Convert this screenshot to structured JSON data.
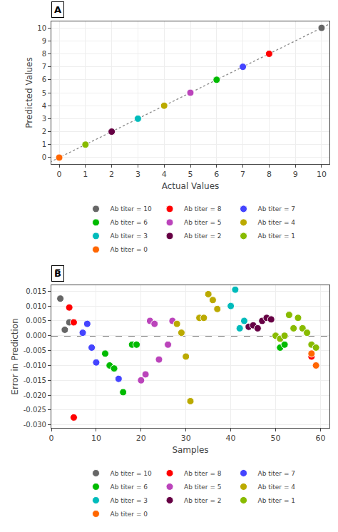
{
  "chart_data": [
    {
      "type": "scatter",
      "title": "A",
      "xlabel": "Actual Values",
      "ylabel": "Predicted Values",
      "xlim": [
        -0.3,
        10.3
      ],
      "ylim": [
        -0.5,
        10.5
      ],
      "xticks": [
        0,
        1,
        2,
        3,
        4,
        5,
        6,
        7,
        8,
        9,
        10
      ],
      "yticks": [
        0,
        1,
        2,
        3,
        4,
        5,
        6,
        7,
        8,
        9,
        10
      ],
      "grid": true,
      "legend": "bottom",
      "marker": "circle",
      "series": [
        {
          "type": "line",
          "line_style": "dotted",
          "color": "#888888",
          "x": [
            -0.5,
            10.5
          ],
          "y": [
            -0.5,
            10.5
          ]
        },
        {
          "name": "Ab titer = 10",
          "color": "#666666",
          "x": [
            10
          ],
          "y": [
            10
          ]
        },
        {
          "name": "Ab titer = 8",
          "color": "#FF0000",
          "x": [
            8
          ],
          "y": [
            8
          ]
        },
        {
          "name": "Ab titer = 7",
          "color": "#4444FF",
          "x": [
            7
          ],
          "y": [
            7
          ]
        },
        {
          "name": "Ab titer = 6",
          "color": "#00BB00",
          "x": [
            6
          ],
          "y": [
            6
          ]
        },
        {
          "name": "Ab titer = 5",
          "color": "#BB44BB",
          "x": [
            5
          ],
          "y": [
            5
          ]
        },
        {
          "name": "Ab titer = 4",
          "color": "#BBAA00",
          "x": [
            4
          ],
          "y": [
            4
          ]
        },
        {
          "name": "Ab titer = 3",
          "color": "#00BBBB",
          "x": [
            3
          ],
          "y": [
            3
          ]
        },
        {
          "name": "Ab titer = 2",
          "color": "#660044",
          "x": [
            2
          ],
          "y": [
            2
          ]
        },
        {
          "name": "Ab titer = 1",
          "color": "#88BB00",
          "x": [
            1
          ],
          "y": [
            1
          ]
        },
        {
          "name": "Ab titer = 0",
          "color": "#FF6600",
          "x": [
            0
          ],
          "y": [
            0
          ]
        }
      ]
    },
    {
      "type": "scatter",
      "title": "B̅",
      "xlabel": "Samples",
      "ylabel": "Error in Prediction",
      "xlim": [
        0,
        62
      ],
      "ylim": [
        -0.031,
        0.017
      ],
      "xticks": [
        0,
        10,
        20,
        30,
        40,
        50,
        60
      ],
      "yticks": [
        {
          "value": -0.03,
          "label": "-0.030"
        },
        {
          "value": -0.025,
          "label": "-0.025"
        },
        {
          "value": -0.02,
          "label": "-0.020"
        },
        {
          "value": -0.015,
          "label": "-0.015"
        },
        {
          "value": -0.01,
          "label": "-0.010"
        },
        {
          "value": -0.005,
          "label": "-0.005"
        },
        {
          "value": 0,
          "label": "0.000"
        },
        {
          "value": 0.005,
          "label": "0.005"
        },
        {
          "value": 0.01,
          "label": "0.010"
        },
        {
          "value": 0.015,
          "label": "0.015"
        }
      ],
      "grid": true,
      "legend": "bottom",
      "marker": "circle",
      "hline": {
        "y": 0,
        "color": "black",
        "line_style": "dashed"
      },
      "series": [
        {
          "name": "Ab titer = 10",
          "color": "#666666",
          "x": [
            2,
            3,
            4
          ],
          "y": [
            0.0125,
            0.002,
            0.0045
          ]
        },
        {
          "name": "Ab titer = 8",
          "color": "#FF0000",
          "x": [
            4,
            5,
            5,
            58,
            59
          ],
          "y": [
            0.0095,
            -0.0275,
            0.0045,
            -0.007,
            -0.01
          ]
        },
        {
          "name": "Ab titer = 7",
          "color": "#4444FF",
          "x": [
            7,
            8,
            9,
            10,
            15
          ],
          "y": [
            0.001,
            0.004,
            -0.004,
            -0.009,
            -0.0145
          ]
        },
        {
          "name": "Ab titer = 6",
          "color": "#00BB00",
          "x": [
            12,
            13,
            14,
            16,
            18,
            19,
            51,
            52
          ],
          "y": [
            -0.006,
            -0.01,
            -0.011,
            -0.019,
            -0.003,
            -0.003,
            -0.004,
            -0.003
          ]
        },
        {
          "name": "Ab titer = 5",
          "color": "#BB44BB",
          "x": [
            20,
            21,
            22,
            23,
            24,
            26,
            27
          ],
          "y": [
            -0.015,
            -0.013,
            0.005,
            0.004,
            -0.008,
            -0.003,
            0.005
          ]
        },
        {
          "name": "Ab titer = 4",
          "color": "#BBAA00",
          "x": [
            28,
            29,
            30,
            31,
            33,
            34,
            35,
            36,
            37
          ],
          "y": [
            0.004,
            0.001,
            -0.007,
            -0.022,
            0.006,
            0.006,
            0.014,
            0.012,
            0.009
          ]
        },
        {
          "name": "Ab titer = 3",
          "color": "#00BBBB",
          "x": [
            40,
            41,
            42,
            43,
            44
          ],
          "y": [
            0.01,
            0.0155,
            0.0025,
            0.005,
            0.003
          ]
        },
        {
          "name": "Ab titer = 2",
          "color": "#660044",
          "x": [
            44,
            45,
            46,
            47,
            48,
            49
          ],
          "y": [
            0.003,
            0.0035,
            0.0025,
            0.005,
            0.006,
            0.0055
          ]
        },
        {
          "name": "Ab titer = 1",
          "color": "#88BB00",
          "x": [
            50,
            51,
            52,
            53,
            54,
            55,
            56,
            57,
            58,
            59
          ],
          "y": [
            0.0,
            -0.001,
            0.0,
            0.007,
            0.0025,
            0.006,
            0.0025,
            0.001,
            -0.003,
            -0.004
          ]
        },
        {
          "name": "Ab titer = 0",
          "color": "#FF6600",
          "x": [
            58,
            59
          ],
          "y": [
            -0.006,
            -0.01
          ]
        }
      ]
    }
  ]
}
